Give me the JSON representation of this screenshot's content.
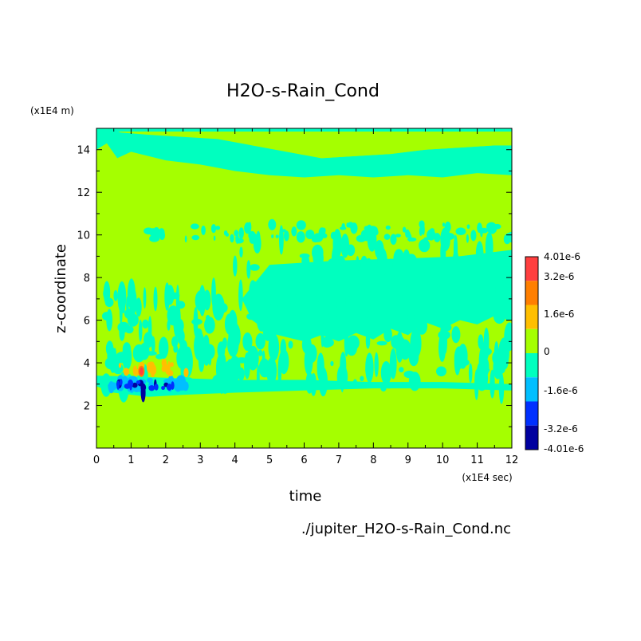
{
  "chart_data": {
    "type": "heatmap",
    "title": "H2O-s-Rain_Cond",
    "xlabel": "time",
    "ylabel": "z-coordinate",
    "x_unit": "(x1E4 sec)",
    "y_unit": "(x1E4 m)",
    "xlim": [
      0,
      12
    ],
    "ylim": [
      0,
      15
    ],
    "x_ticks": [
      "0",
      "1",
      "2",
      "3",
      "4",
      "5",
      "6",
      "7",
      "8",
      "9",
      "10",
      "11",
      "12"
    ],
    "y_ticks": [
      "2",
      "4",
      "6",
      "8",
      "10",
      "12",
      "14"
    ],
    "grid": false,
    "colorbar": {
      "levels": [
        "4.01e-6",
        "3.2e-6",
        "1.6e-6",
        "0",
        "-1.6e-6",
        "-3.2e-6",
        "-4.01e-6"
      ],
      "colors": [
        "#ff3f3f",
        "#ff7f00",
        "#ffbf00",
        "#a5ff00",
        "#00ffbf",
        "#00bfff",
        "#0030ff",
        "#00009f"
      ]
    },
    "regions": [
      {
        "level": "negative",
        "description": "upper cyan band",
        "x_range": [
          0,
          12
        ],
        "z_range": [
          12.7,
          14.9
        ]
      },
      {
        "level": "negative",
        "description": "streaks",
        "x_range": [
          0,
          12
        ],
        "z_range": [
          2.6,
          10.3
        ]
      },
      {
        "level": "strong negative",
        "description": "blue core",
        "x_range": [
          0.4,
          2.6
        ],
        "z_range": [
          2.5,
          3.3
        ]
      },
      {
        "level": "positive",
        "description": "red/orange core",
        "x_range": [
          0.6,
          2.6
        ],
        "z_range": [
          3.3,
          4.1
        ]
      }
    ]
  },
  "footer": {
    "filename": "./jupiter_H2O-s-Rain_Cond.nc"
  }
}
